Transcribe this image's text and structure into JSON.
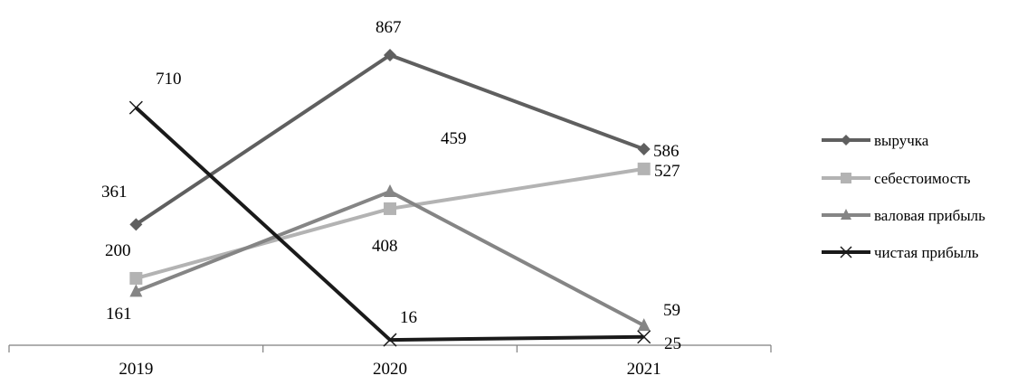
{
  "chart_data": {
    "type": "line",
    "categories": [
      "2019",
      "2020",
      "2021"
    ],
    "series": [
      {
        "name": "выручка",
        "values": [
          361,
          867,
          586
        ],
        "labels": [
          "361",
          "867",
          "586"
        ],
        "color": "#5f5f5f",
        "marker": "diamond"
      },
      {
        "name": "себестоимость",
        "values": [
          200,
          408,
          527
        ],
        "labels": [
          "200",
          "408",
          "527"
        ],
        "color": "#b3b3b3",
        "marker": "square"
      },
      {
        "name": "валовая прибыль",
        "values": [
          161,
          459,
          59
        ],
        "labels": [
          "161",
          "459",
          "59"
        ],
        "color": "#858585",
        "marker": "triangle"
      },
      {
        "name": "чистая прибыль",
        "values": [
          710,
          16,
          25
        ],
        "labels": [
          "710",
          "16",
          "25"
        ],
        "color": "#1a1a1a",
        "marker": "x"
      }
    ],
    "legend": "right",
    "grid": false
  }
}
